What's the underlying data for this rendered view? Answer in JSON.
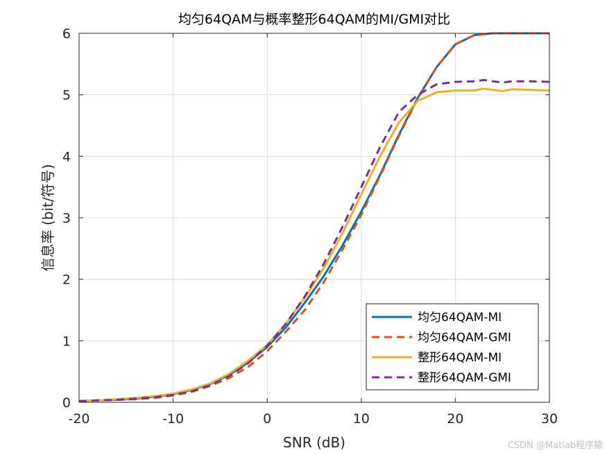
{
  "chart_data": {
    "type": "line",
    "title": "均匀64QAM与概率整形64QAM的MI/GMI对比",
    "xlabel": "SNR (dB)",
    "ylabel": "信息率 (bit/符号)",
    "xlim": [
      -20,
      30
    ],
    "ylim": [
      0,
      6
    ],
    "xticks": [
      -20,
      -10,
      0,
      10,
      20,
      30
    ],
    "yticks": [
      0,
      1,
      2,
      3,
      4,
      5,
      6
    ],
    "grid": true,
    "legend_position": "bottom-right",
    "series": [
      {
        "name": "均匀64QAM-MI",
        "color": "#0072BD",
        "dash": "solid",
        "x": [
          -20,
          -18,
          -16,
          -14,
          -12,
          -10,
          -8,
          -6,
          -4,
          -2,
          0,
          2,
          4,
          6,
          8,
          10,
          12,
          14,
          16,
          18,
          20,
          22,
          24,
          26,
          28,
          30
        ],
        "y": [
          0.02,
          0.03,
          0.04,
          0.06,
          0.09,
          0.13,
          0.2,
          0.3,
          0.45,
          0.65,
          0.9,
          1.22,
          1.62,
          2.05,
          2.55,
          3.1,
          3.7,
          4.35,
          4.95,
          5.45,
          5.82,
          5.97,
          6.0,
          6.0,
          6.0,
          6.0
        ]
      },
      {
        "name": "均匀64QAM-GMI",
        "color": "#D95319",
        "dash": "dashed",
        "x": [
          -20,
          -18,
          -16,
          -14,
          -12,
          -10,
          -8,
          -6,
          -4,
          -2,
          0,
          2,
          4,
          6,
          8,
          10,
          12,
          14,
          16,
          18,
          20,
          22,
          24,
          26,
          28,
          30
        ],
        "y": [
          0.02,
          0.03,
          0.04,
          0.05,
          0.07,
          0.11,
          0.17,
          0.27,
          0.4,
          0.58,
          0.83,
          1.15,
          1.5,
          1.95,
          2.48,
          3.05,
          3.68,
          4.33,
          4.94,
          5.45,
          5.82,
          5.97,
          6.0,
          6.0,
          6.0,
          6.0
        ]
      },
      {
        "name": "整形64QAM-MI",
        "color": "#EDB120",
        "dash": "solid",
        "x": [
          -20,
          -18,
          -16,
          -14,
          -12,
          -10,
          -8,
          -6,
          -4,
          -2,
          0,
          2,
          4,
          6,
          8,
          10,
          12,
          14,
          16,
          18,
          20,
          22,
          23,
          24,
          25,
          26,
          28,
          30
        ],
        "y": [
          0.02,
          0.03,
          0.05,
          0.07,
          0.1,
          0.14,
          0.21,
          0.31,
          0.47,
          0.68,
          0.93,
          1.28,
          1.7,
          2.18,
          2.75,
          3.38,
          4.0,
          4.55,
          4.9,
          5.04,
          5.07,
          5.07,
          5.1,
          5.08,
          5.06,
          5.09,
          5.08,
          5.07
        ]
      },
      {
        "name": "整形64QAM-GMI",
        "color": "#7E2F8E",
        "dash": "dashed",
        "x": [
          -20,
          -18,
          -16,
          -14,
          -12,
          -10,
          -8,
          -6,
          -4,
          -2,
          0,
          2,
          4,
          6,
          8,
          10,
          12,
          14,
          16,
          18,
          20,
          22,
          23,
          24,
          25,
          26,
          28,
          30
        ],
        "y": [
          0.02,
          0.03,
          0.04,
          0.06,
          0.08,
          0.12,
          0.18,
          0.28,
          0.43,
          0.64,
          0.92,
          1.28,
          1.72,
          2.25,
          2.85,
          3.5,
          4.15,
          4.72,
          5.0,
          5.17,
          5.21,
          5.22,
          5.24,
          5.22,
          5.2,
          5.22,
          5.22,
          5.21
        ]
      }
    ]
  },
  "watermark": "CSDN @Matlab程序猿"
}
